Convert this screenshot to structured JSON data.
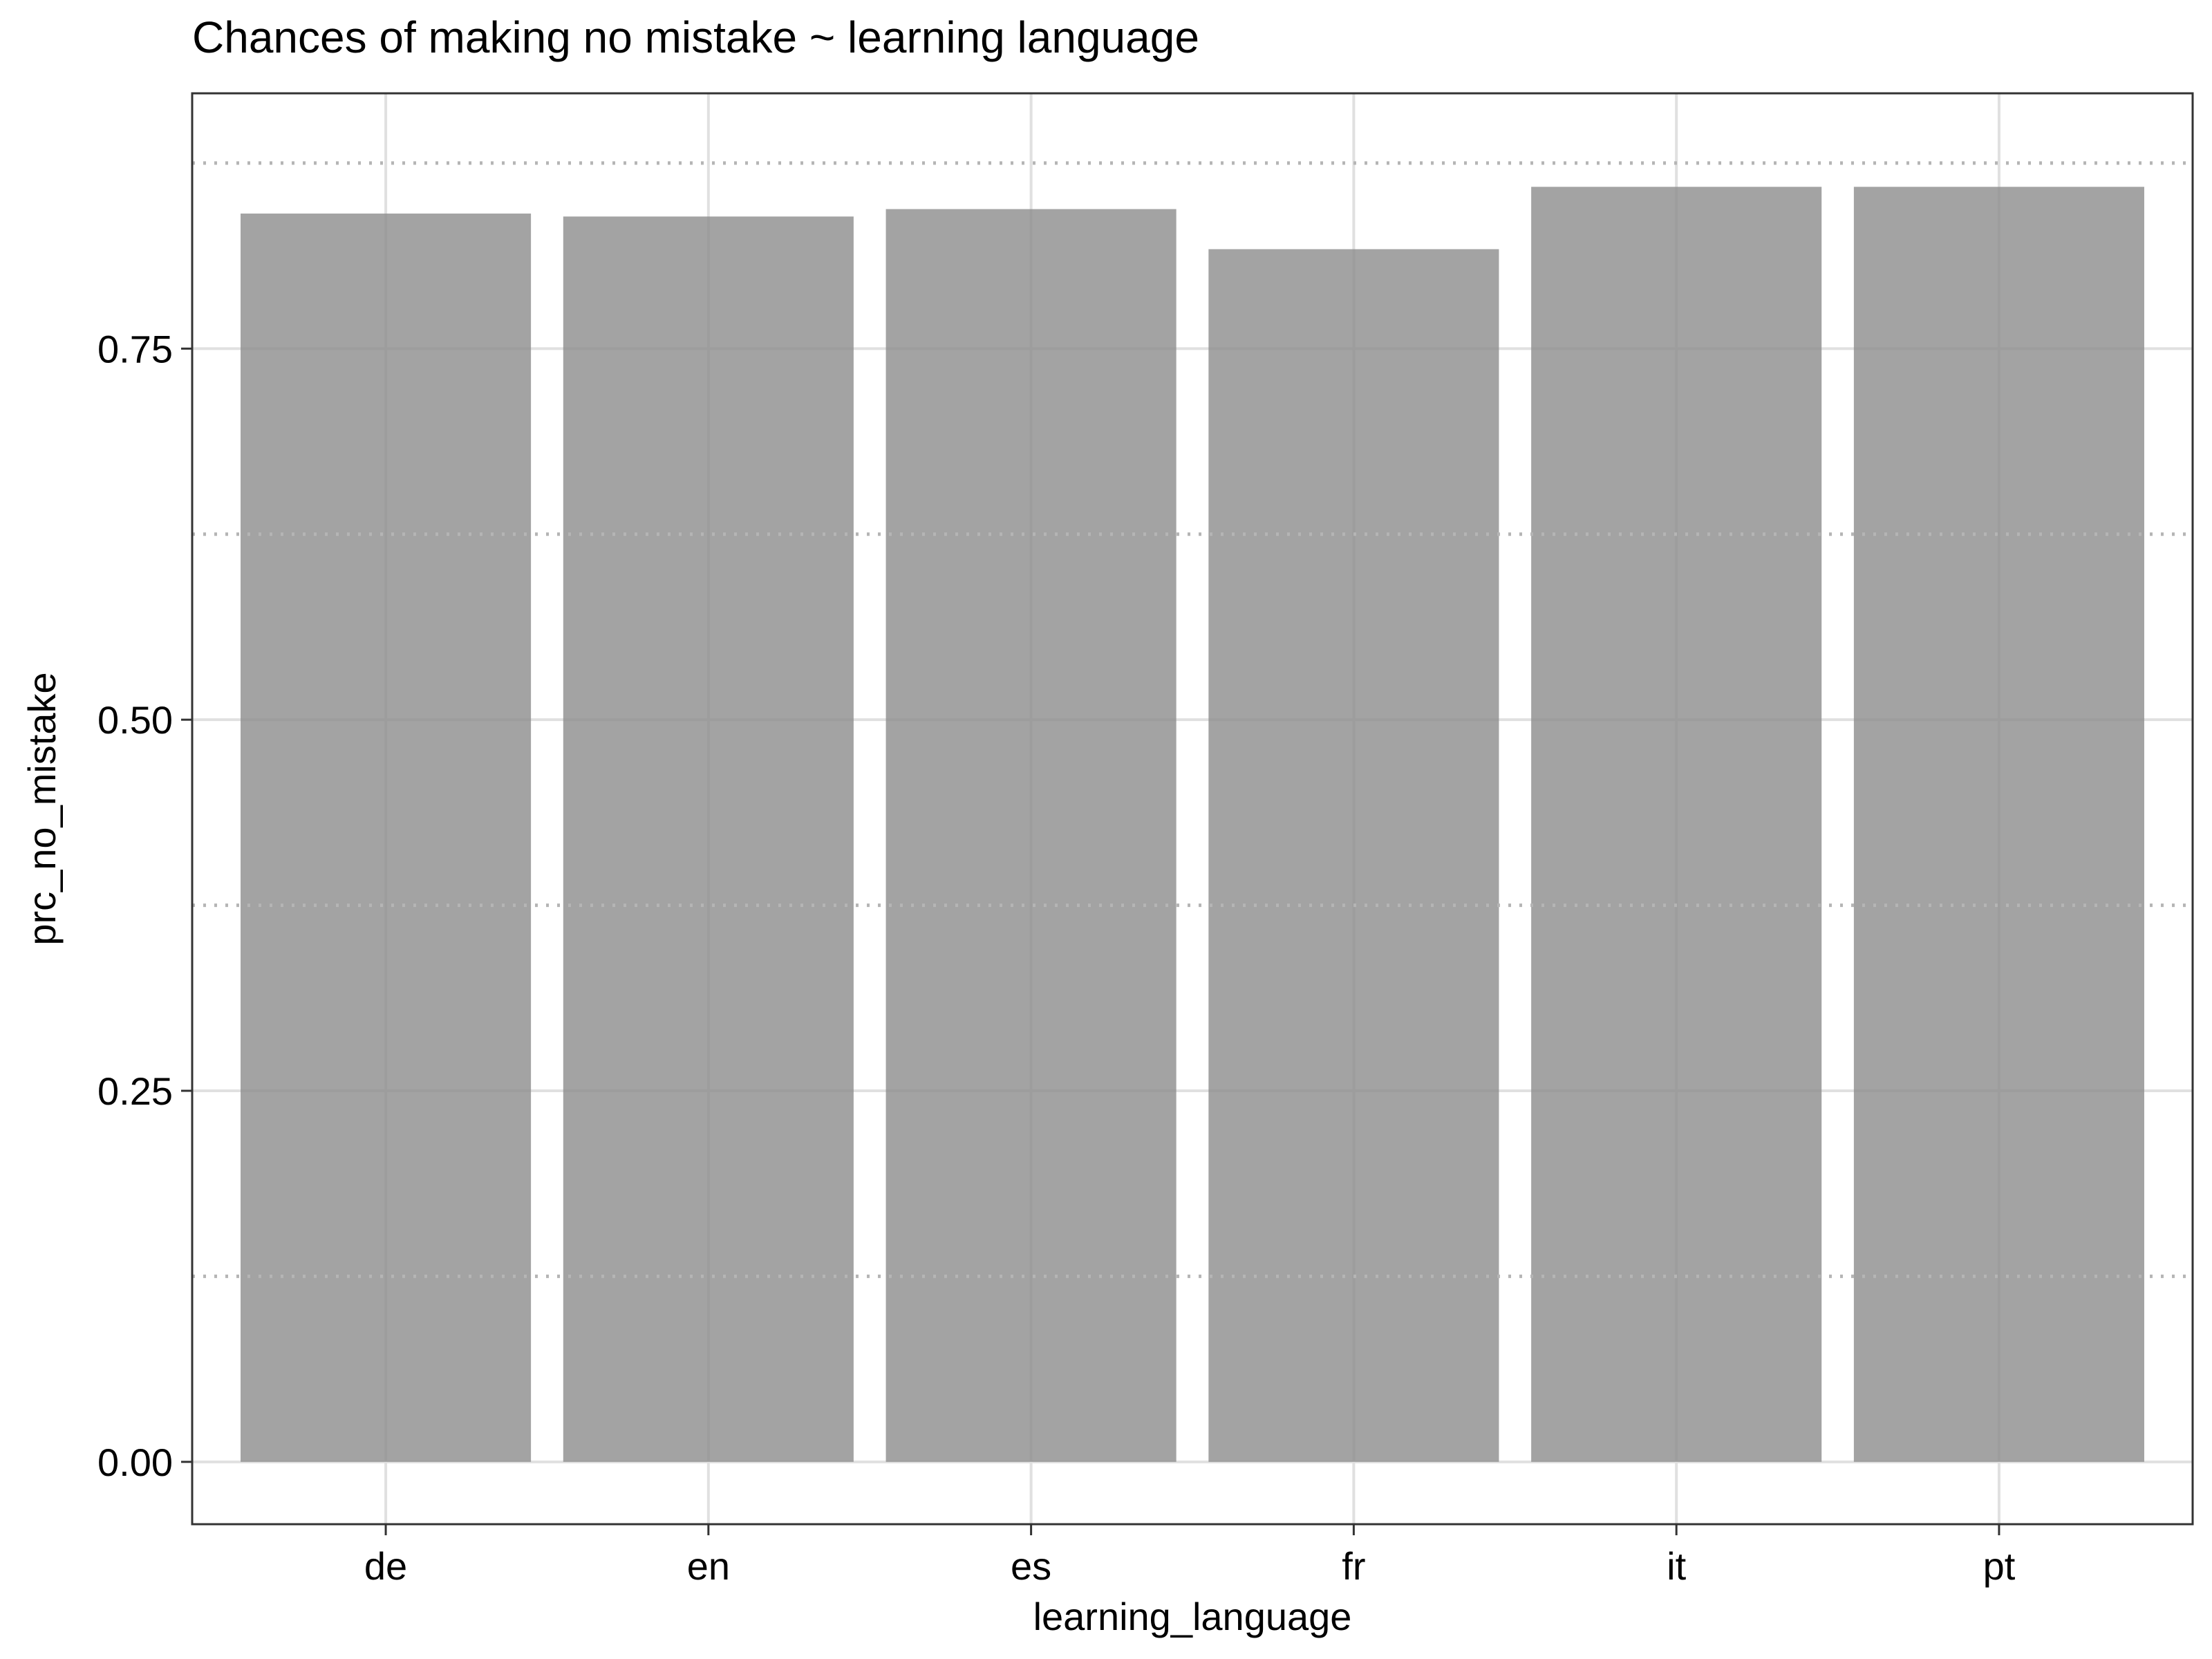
{
  "chart_data": {
    "type": "bar",
    "title": "Chances of making no mistake ~ learning language",
    "xlabel": "learning_language",
    "ylabel": "prc_no_mistake",
    "categories": [
      "de",
      "en",
      "es",
      "fr",
      "it",
      "pt"
    ],
    "values": [
      0.841,
      0.839,
      0.844,
      0.817,
      0.859,
      0.859
    ],
    "ylim": [
      -0.042,
      0.922
    ],
    "y_ticks": [
      0.0,
      0.25,
      0.5,
      0.75
    ],
    "y_tick_labels": [
      "0.00",
      "0.25",
      "0.50",
      "0.75"
    ],
    "y_minor_ticks": [
      0.125,
      0.375,
      0.625,
      0.875
    ],
    "grid": true,
    "legend": "none",
    "colors": {
      "bar": "#8c8c8c",
      "bar_opacity": 0.8,
      "major_grid": "#e0e0e0",
      "minor_grid": "#b5b5b5",
      "panel_border": "#333333"
    }
  }
}
